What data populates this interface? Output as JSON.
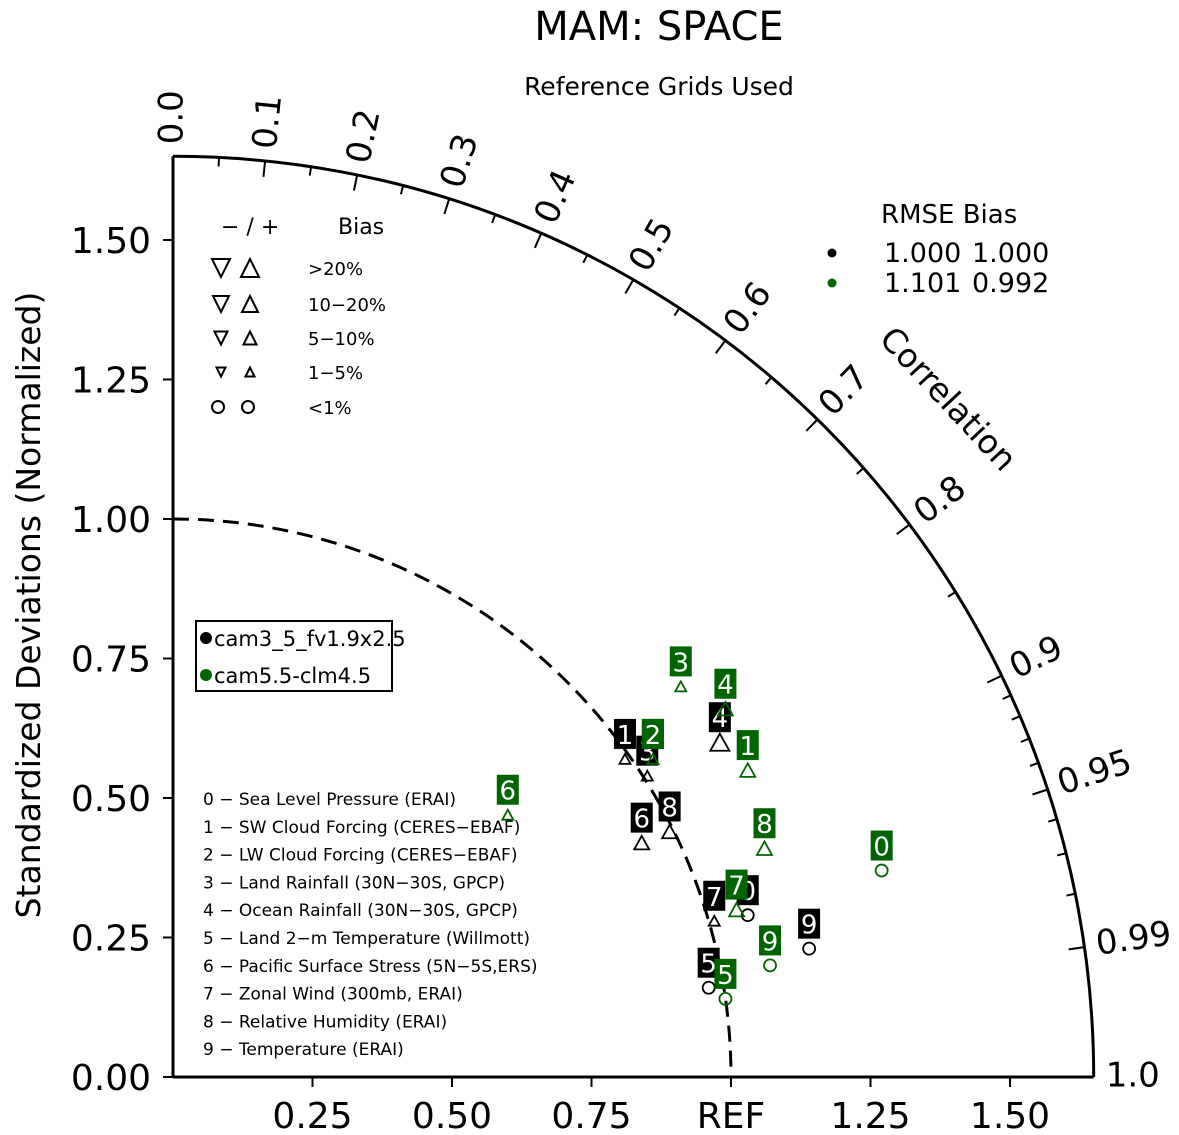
{
  "chart_data": {
    "type": "scatter",
    "title": "MAM: SPACE",
    "subtitle": "Reference Grids Used",
    "ylabel": "Standardized Deviations (Normalized)",
    "correlation_label": "Correlation",
    "ref_label": "REF",
    "ylim": [
      0,
      1.65
    ],
    "xlim": [
      0,
      1.65
    ],
    "y_ticks": [
      "0.00",
      "0.25",
      "0.50",
      "0.75",
      "1.00",
      "1.25",
      "1.50"
    ],
    "x_ticks": [
      "0.25",
      "0.50",
      "0.75",
      "1.25",
      "1.50"
    ],
    "correlation_ticks": [
      "0.0",
      "0.1",
      "0.2",
      "0.3",
      "0.4",
      "0.5",
      "0.6",
      "0.7",
      "0.8",
      "0.9",
      "0.95",
      "0.99",
      "1.0"
    ],
    "bias_legend": {
      "header_sign": "− / +",
      "header_label": "Bias",
      "rows": [
        ">20%",
        "10−20%",
        "5−10%",
        "1−5%",
        "<1%"
      ]
    },
    "rmse_table": {
      "header": "RMSE  Bias",
      "rows": [
        {
          "rmse": "1.000",
          "bias": "1.000",
          "color": "#000000"
        },
        {
          "rmse": "1.101",
          "bias": "0.992",
          "color": "#006400"
        }
      ]
    },
    "series": [
      {
        "name": "cam3_5_fv1.9x2.5",
        "color": "#000000",
        "points": [
          {
            "id": "0",
            "x": 1.03,
            "y": 0.29,
            "marker": "circle"
          },
          {
            "id": "1",
            "x": 0.81,
            "y": 0.57,
            "marker": "triangle_up_small"
          },
          {
            "id": "2",
            "x": 0.86,
            "y": 0.57,
            "marker": "triangle_up_small"
          },
          {
            "id": "3",
            "x": 0.85,
            "y": 0.54,
            "marker": "triangle_up_small"
          },
          {
            "id": "4",
            "x": 0.98,
            "y": 0.6,
            "marker": "triangle_up_large"
          },
          {
            "id": "5",
            "x": 0.96,
            "y": 0.16,
            "marker": "circle"
          },
          {
            "id": "6",
            "x": 0.84,
            "y": 0.42,
            "marker": "triangle_up_medium"
          },
          {
            "id": "7",
            "x": 0.97,
            "y": 0.28,
            "marker": "triangle_up_small"
          },
          {
            "id": "8",
            "x": 0.89,
            "y": 0.44,
            "marker": "triangle_up_medium"
          },
          {
            "id": "9",
            "x": 1.14,
            "y": 0.23,
            "marker": "circle"
          }
        ]
      },
      {
        "name": "cam5.5-clm4.5",
        "color": "#006400",
        "points": [
          {
            "id": "0",
            "x": 1.27,
            "y": 0.37,
            "marker": "circle"
          },
          {
            "id": "1",
            "x": 1.03,
            "y": 0.55,
            "marker": "triangle_up_medium"
          },
          {
            "id": "2",
            "x": 0.86,
            "y": 0.57,
            "marker": "triangle_up_small"
          },
          {
            "id": "3",
            "x": 0.91,
            "y": 0.7,
            "marker": "triangle_up_small"
          },
          {
            "id": "4",
            "x": 0.99,
            "y": 0.66,
            "marker": "triangle_up_medium"
          },
          {
            "id": "5",
            "x": 0.99,
            "y": 0.14,
            "marker": "circle"
          },
          {
            "id": "6",
            "x": 0.6,
            "y": 0.47,
            "marker": "triangle_up_small"
          },
          {
            "id": "7",
            "x": 1.01,
            "y": 0.3,
            "marker": "triangle_up_medium"
          },
          {
            "id": "8",
            "x": 1.06,
            "y": 0.41,
            "marker": "triangle_up_medium"
          },
          {
            "id": "9",
            "x": 1.07,
            "y": 0.2,
            "marker": "circle"
          }
        ]
      }
    ],
    "variable_legend": [
      "0 − Sea Level Pressure (ERAI)",
      "1 − SW Cloud Forcing (CERES−EBAF)",
      "2 − LW Cloud Forcing (CERES−EBAF)",
      "3 − Land Rainfall (30N−30S, GPCP)",
      "4 − Ocean Rainfall (30N−30S, GPCP)",
      "5 − Land 2−m Temperature (Willmott)",
      "6 − Pacific Surface Stress (5N−5S,ERS)",
      "7 − Zonal Wind (300mb, ERAI)",
      "8 − Relative Humidity (ERAI)",
      "9 − Temperature (ERAI)"
    ]
  }
}
